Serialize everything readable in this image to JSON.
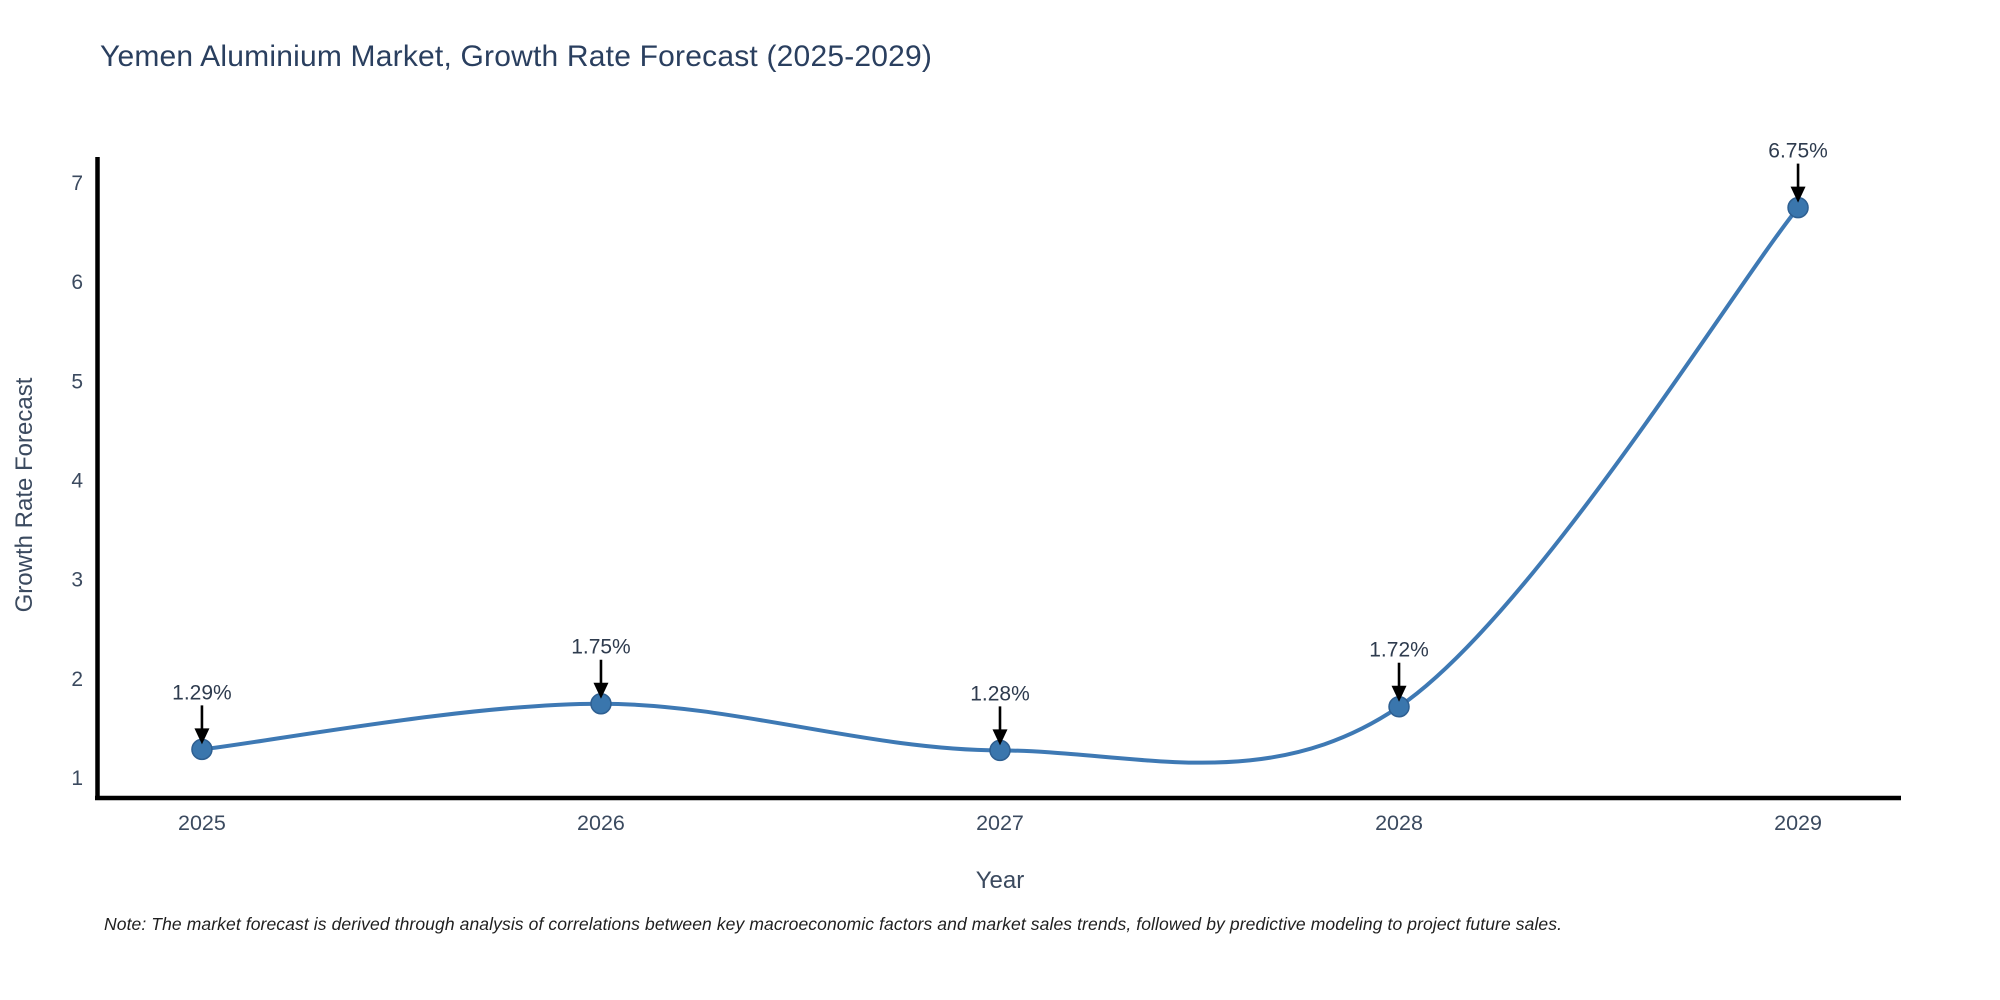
{
  "header": {
    "title": "Yemen Aluminium Market, Growth Rate Forecast (2025-2029)"
  },
  "chart_data": {
    "type": "line",
    "line_shape": "spline",
    "x": [
      2025,
      2026,
      2027,
      2028,
      2029
    ],
    "y": [
      1.29,
      1.75,
      1.28,
      1.72,
      6.75
    ],
    "point_labels": [
      "1.29%",
      "1.75%",
      "1.28%",
      "1.72%",
      "6.75%"
    ],
    "xlabel": "Year",
    "ylabel": "Growth Rate Forecast",
    "xticks": [
      2025,
      2026,
      2027,
      2028,
      2029
    ],
    "yticks": [
      1,
      2,
      3,
      4,
      5,
      6,
      7
    ],
    "xlim": [
      2024.737,
      2029.258
    ],
    "ylim": [
      0.8,
      7.26
    ],
    "grid": false,
    "legend": "none",
    "annotations_have_arrows": true
  },
  "colors": {
    "line": "#3e79b4",
    "marker_fill": "#3a76ad",
    "marker_edge": "#2e5f91",
    "axis": "#000000",
    "title_text": "#2a3f5f",
    "tick_text": "#3b4a5f",
    "annotation_text": "#2e3b4e",
    "arrow": "#000000",
    "note_text": "#1f1f1f"
  },
  "footnote": {
    "text": "Note: The market forecast is derived through analysis of correlations between key macroeconomic factors and market sales trends, followed by predictive modeling to project future sales."
  }
}
